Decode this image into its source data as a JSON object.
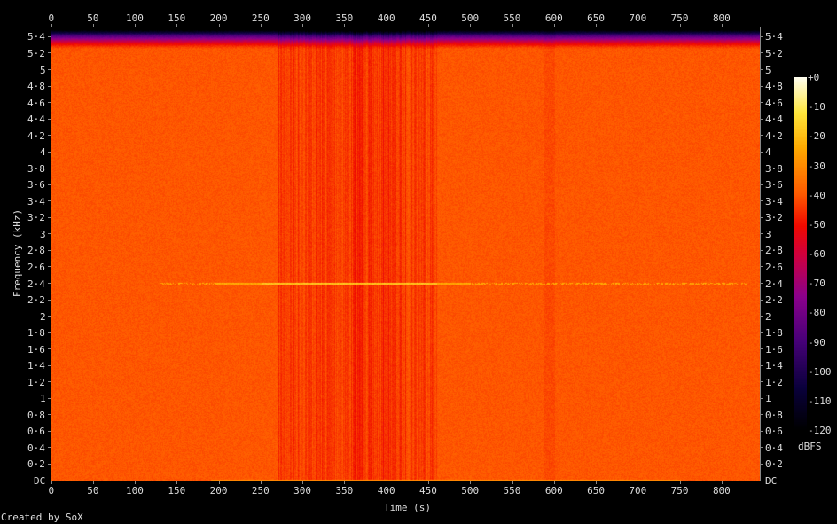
{
  "chart_data": {
    "type": "heatmap",
    "title": "",
    "xlabel": "Time (s)",
    "ylabel": "Frequency (kHz)",
    "xlim": [
      0,
      845
    ],
    "ylim": [
      0,
      5.5125
    ],
    "x_ticks": [
      "0",
      "50",
      "100",
      "150",
      "200",
      "250",
      "300",
      "350",
      "400",
      "450",
      "500",
      "550",
      "600",
      "650",
      "700",
      "750",
      "800"
    ],
    "y_ticks": [
      "DC",
      "0·2",
      "0·4",
      "0·6",
      "0·8",
      "1",
      "1·2",
      "1·4",
      "1·6",
      "1·8",
      "2",
      "2·2",
      "2·4",
      "2·6",
      "2·8",
      "3",
      "3·2",
      "3·4",
      "3·6",
      "3·8",
      "4",
      "4·2",
      "4·4",
      "4·6",
      "4·8",
      "5",
      "5·2",
      "5·4"
    ],
    "colorbar": {
      "label": "dBFS",
      "range": [
        -120,
        0
      ],
      "ticks": [
        "+0",
        "-10",
        "-20",
        "-30",
        "-40",
        "-50",
        "-60",
        "-70",
        "-80",
        "-90",
        "-100",
        "-110",
        "-120"
      ]
    },
    "background_level_dbfs": -40,
    "features": [
      {
        "kind": "tone",
        "frequency_khz": 2.4,
        "start_s": 130,
        "end_s": 830,
        "level_dbfs": -20
      },
      {
        "kind": "darker-band",
        "start_s": 270,
        "end_s": 460,
        "level_dbfs": -48
      },
      {
        "kind": "rolloff",
        "above_khz": 5.25
      }
    ]
  },
  "footer": "Created by SoX"
}
